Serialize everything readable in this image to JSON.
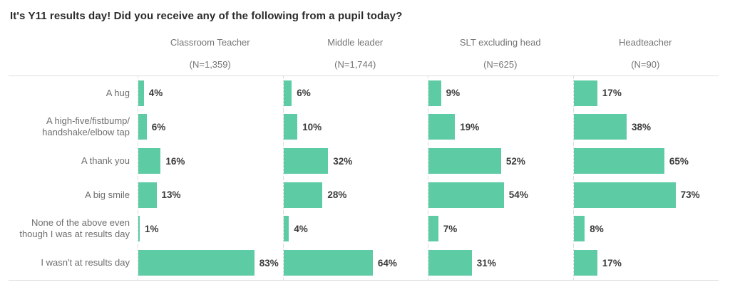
{
  "title": "It's Y11 results day! Did you receive any of the following from a pupil today?",
  "colors": {
    "bar": "#5dcba3",
    "title_text": "#2b2b2b",
    "header_text": "#757575",
    "row_label_text": "#6e6e6e",
    "value_text": "#3b3b3b",
    "grid_line": "#dddddd"
  },
  "chart_data": {
    "type": "bar",
    "orientation": "horizontal",
    "title": "It's Y11 results day! Did you receive any of the following from a pupil today?",
    "value_suffix": "%",
    "xlim": [
      0,
      100
    ],
    "grid": "dashed column separators, top and bottom rules",
    "legend_position": "column headers across top",
    "categories": [
      "A hug",
      "A high-five/fistbump/\nhandshake/elbow tap",
      "A thank you",
      "A big smile",
      "None of the above even\nthough I was at results day",
      "I wasn't at results day"
    ],
    "series": [
      {
        "name": "Classroom Teacher",
        "n_label": "(N=1,359)",
        "values": [
          4,
          6,
          16,
          13,
          1,
          83
        ],
        "value_labels": [
          "4%",
          "6%",
          "16%",
          "13%",
          "1%",
          "83%"
        ]
      },
      {
        "name": "Middle leader",
        "n_label": "(N=1,744)",
        "values": [
          6,
          10,
          32,
          28,
          4,
          64
        ],
        "value_labels": [
          "6%",
          "10%",
          "32%",
          "28%",
          "4%",
          "64%"
        ]
      },
      {
        "name": "SLT excluding head",
        "n_label": "(N=625)",
        "values": [
          9,
          19,
          52,
          54,
          7,
          31
        ],
        "value_labels": [
          "9%",
          "19%",
          "52%",
          "54%",
          "7%",
          "31%"
        ]
      },
      {
        "name": "Headteacher",
        "n_label": "(N=90)",
        "values": [
          17,
          38,
          65,
          73,
          8,
          17
        ],
        "value_labels": [
          "17%",
          "38%",
          "65%",
          "73%",
          "8%",
          "17%"
        ]
      }
    ]
  }
}
